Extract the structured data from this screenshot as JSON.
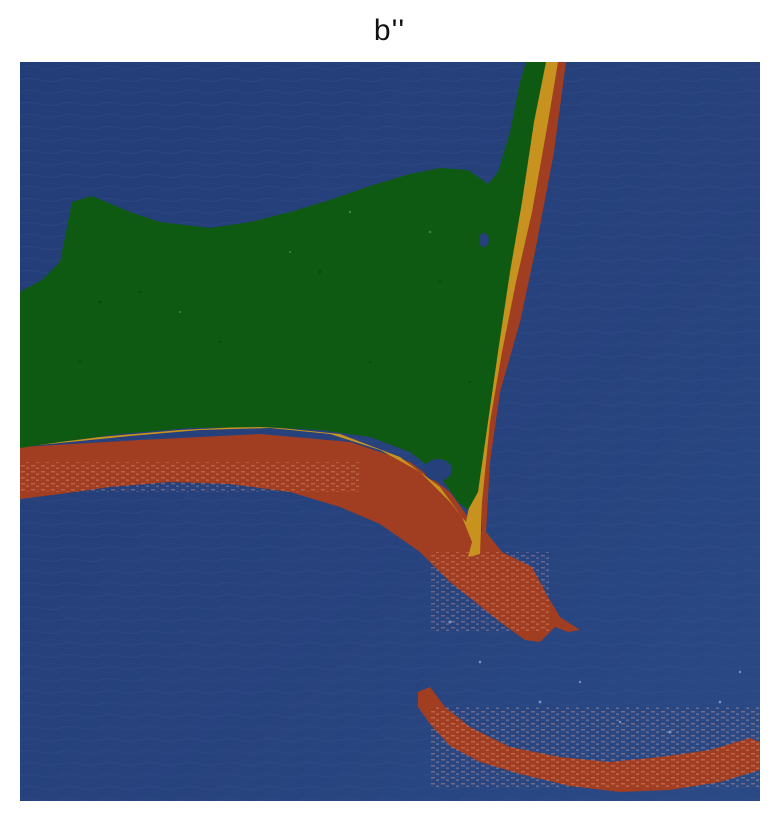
{
  "figure": {
    "title": "b''"
  },
  "colors": {
    "water": "#25407a",
    "vegetation": "#0f5a12",
    "dry_sand": "#c8921e",
    "wet_sand": "#a13e22",
    "wet_sand_highlight": "#e59280"
  }
}
